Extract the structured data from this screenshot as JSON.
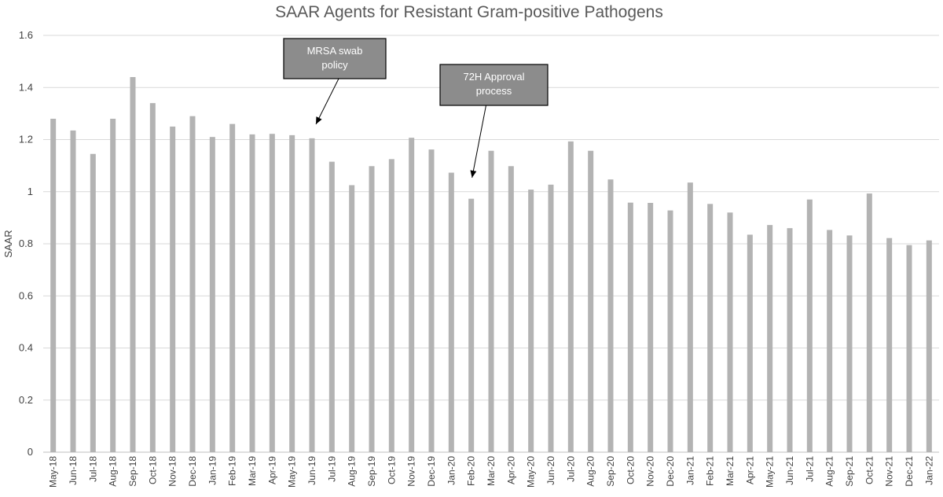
{
  "chart_data": {
    "type": "bar",
    "title": "SAAR Agents for Resistant Gram-positive Pathogens",
    "xlabel": "",
    "ylabel": "SAAR",
    "ylim": [
      0,
      1.6
    ],
    "yticks": [
      "0",
      "0.2",
      "0.4",
      "0.6",
      "0.8",
      "1",
      "1.2",
      "1.4",
      "1.6"
    ],
    "grid": true,
    "categories": [
      "May-18",
      "Jun-18",
      "Jul-18",
      "Aug-18",
      "Sep-18",
      "Oct-18",
      "Nov-18",
      "Dec-18",
      "Jan-19",
      "Feb-19",
      "Mar-19",
      "Apr-19",
      "May-19",
      "Jun-19",
      "Jul-19",
      "Aug-19",
      "Sep-19",
      "Oct-19",
      "Nov-19",
      "Dec-19",
      "Jan-20",
      "Feb-20",
      "Mar-20",
      "Apr-20",
      "May-20",
      "Jun-20",
      "Jul-20",
      "Aug-20",
      "Sep-20",
      "Oct-20",
      "Nov-20",
      "Dec-20",
      "Jan-21",
      "Feb-21",
      "Mar-21",
      "Apr-21",
      "May-21",
      "Jun-21",
      "Jul-21",
      "Aug-21",
      "Sep-21",
      "Oct-21",
      "Nov-21",
      "Dec-21",
      "Jan-22"
    ],
    "values": [
      1.28,
      1.235,
      1.145,
      1.28,
      1.44,
      1.34,
      1.25,
      1.29,
      1.21,
      1.26,
      1.22,
      1.222,
      1.217,
      1.205,
      1.115,
      1.025,
      1.098,
      1.125,
      1.207,
      1.162,
      1.073,
      0.973,
      1.157,
      1.098,
      1.008,
      1.027,
      1.193,
      1.157,
      1.047,
      0.958,
      0.957,
      0.928,
      1.035,
      0.953,
      0.92,
      0.835,
      0.872,
      0.86,
      0.97,
      0.853,
      0.832,
      0.993,
      0.822,
      0.795,
      0.813
    ],
    "annotations": [
      {
        "line1": "MRSA swab",
        "line2": "policy",
        "points_to": "Jun-19"
      },
      {
        "line1": "72H Approval",
        "line2": "process",
        "points_to": "Feb-20"
      }
    ]
  }
}
